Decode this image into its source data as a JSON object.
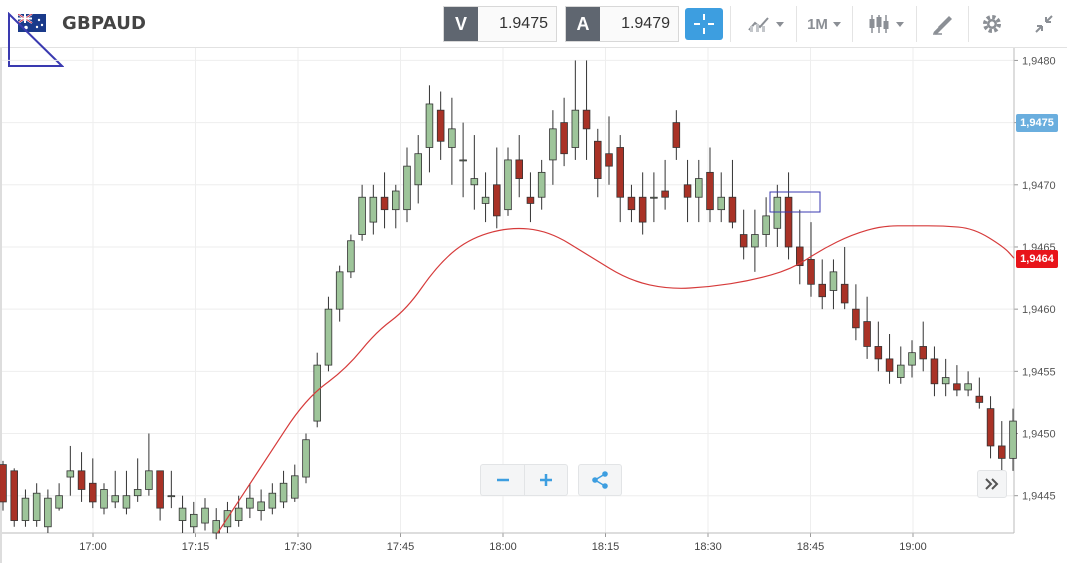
{
  "header": {
    "symbol": "GBPAUD",
    "bid_tag": "V",
    "bid_price": "1.9475",
    "ask_tag": "A",
    "ask_price": "1.9479",
    "timeframe": "1M"
  },
  "colors": {
    "bull": "#9ec59a",
    "bear": "#a93226",
    "ma": "#d63b3b",
    "accent": "#3d9ee0",
    "current_ask_bg": "#6aaede",
    "current_ma_bg": "#e8141a"
  },
  "markers": {
    "ask_label": "1,9475",
    "ma_label": "1,9464"
  },
  "chart_data": {
    "type": "candlestick",
    "title": "",
    "xlabel": "",
    "ylabel": "",
    "ylim": [
      1.9442,
      1.9481
    ],
    "y_ticks": [
      "1,9480",
      "1,9475",
      "1,9470",
      "1,9465",
      "1,9460",
      "1,9455",
      "1,9450",
      "1,9445"
    ],
    "x_ticks": [
      "17:00",
      "17:15",
      "17:30",
      "17:45",
      "18:00",
      "18:15",
      "18:30",
      "18:45",
      "19:00"
    ],
    "grid": true,
    "legend": "none",
    "series": [
      {
        "kind": "ohlc",
        "candles": [
          [
            1.94475,
            1.94478,
            1.94438,
            1.94445
          ],
          [
            1.9447,
            1.94472,
            1.94425,
            1.9443
          ],
          [
            1.9443,
            1.94455,
            1.94425,
            1.94448
          ],
          [
            1.9443,
            1.9446,
            1.94425,
            1.94452
          ],
          [
            1.94425,
            1.94455,
            1.9442,
            1.94448
          ],
          [
            1.9444,
            1.9446,
            1.94438,
            1.9445
          ],
          [
            1.94465,
            1.9449,
            1.9445,
            1.9447
          ],
          [
            1.9447,
            1.94485,
            1.94445,
            1.94455
          ],
          [
            1.9446,
            1.9448,
            1.9444,
            1.94445
          ],
          [
            1.9444,
            1.9446,
            1.94435,
            1.94455
          ],
          [
            1.94445,
            1.9447,
            1.9444,
            1.9445
          ],
          [
            1.9444,
            1.9447,
            1.94435,
            1.9445
          ],
          [
            1.9445,
            1.9448,
            1.94445,
            1.94455
          ],
          [
            1.94455,
            1.945,
            1.9445,
            1.9447
          ],
          [
            1.9447,
            1.9447,
            1.9443,
            1.9444
          ],
          [
            1.9445,
            1.9447,
            1.9444,
            1.9445
          ],
          [
            1.9443,
            1.9445,
            1.9442,
            1.9444
          ],
          [
            1.94425,
            1.94445,
            1.9442,
            1.94435
          ],
          [
            1.94428,
            1.94448,
            1.94422,
            1.9444
          ],
          [
            1.9442,
            1.9444,
            1.94415,
            1.9443
          ],
          [
            1.94425,
            1.94445,
            1.9442,
            1.94438
          ],
          [
            1.9443,
            1.9445,
            1.94425,
            1.9444
          ],
          [
            1.9444,
            1.9446,
            1.94432,
            1.94448
          ],
          [
            1.94438,
            1.94455,
            1.9443,
            1.94445
          ],
          [
            1.9444,
            1.9446,
            1.94435,
            1.94452
          ],
          [
            1.94445,
            1.9447,
            1.9444,
            1.9446
          ],
          [
            1.94448,
            1.94475,
            1.94445,
            1.94466
          ],
          [
            1.94465,
            1.945,
            1.9446,
            1.94495
          ],
          [
            1.9451,
            1.94565,
            1.94505,
            1.94555
          ],
          [
            1.94555,
            1.9461,
            1.9455,
            1.946
          ],
          [
            1.946,
            1.94635,
            1.9459,
            1.9463
          ],
          [
            1.9463,
            1.9466,
            1.94625,
            1.94655
          ],
          [
            1.9466,
            1.947,
            1.94655,
            1.9469
          ],
          [
            1.9467,
            1.947,
            1.9466,
            1.9469
          ],
          [
            1.9469,
            1.9471,
            1.94665,
            1.9468
          ],
          [
            1.9468,
            1.947,
            1.94665,
            1.94695
          ],
          [
            1.9468,
            1.9473,
            1.9467,
            1.94715
          ],
          [
            1.947,
            1.9474,
            1.94685,
            1.94725
          ],
          [
            1.9473,
            1.9478,
            1.9471,
            1.94765
          ],
          [
            1.9476,
            1.94775,
            1.9472,
            1.94735
          ],
          [
            1.9473,
            1.9477,
            1.947,
            1.94745
          ],
          [
            1.9472,
            1.9475,
            1.9469,
            1.9472
          ],
          [
            1.947,
            1.9474,
            1.9468,
            1.94705
          ],
          [
            1.94685,
            1.9471,
            1.9467,
            1.9469
          ],
          [
            1.947,
            1.9473,
            1.94665,
            1.94675
          ],
          [
            1.9468,
            1.9473,
            1.94675,
            1.9472
          ],
          [
            1.9472,
            1.9474,
            1.9469,
            1.94705
          ],
          [
            1.9469,
            1.9471,
            1.9467,
            1.94685
          ],
          [
            1.9469,
            1.9472,
            1.9468,
            1.9471
          ],
          [
            1.9472,
            1.9476,
            1.947,
            1.94745
          ],
          [
            1.9475,
            1.9477,
            1.94715,
            1.94725
          ],
          [
            1.9473,
            1.948,
            1.9472,
            1.9476
          ],
          [
            1.9476,
            1.948,
            1.9472,
            1.94745
          ],
          [
            1.94735,
            1.94745,
            1.9469,
            1.94705
          ],
          [
            1.94725,
            1.94755,
            1.947,
            1.94715
          ],
          [
            1.9473,
            1.9474,
            1.9467,
            1.9469
          ],
          [
            1.9469,
            1.947,
            1.9467,
            1.9468
          ],
          [
            1.9469,
            1.9471,
            1.9466,
            1.9467
          ],
          [
            1.9469,
            1.9471,
            1.9467,
            1.9469
          ],
          [
            1.94695,
            1.9472,
            1.9468,
            1.9469
          ],
          [
            1.9475,
            1.9476,
            1.9472,
            1.9473
          ],
          [
            1.947,
            1.9472,
            1.9467,
            1.9469
          ],
          [
            1.9469,
            1.9472,
            1.9467,
            1.94705
          ],
          [
            1.9471,
            1.9473,
            1.9467,
            1.9468
          ],
          [
            1.9468,
            1.9471,
            1.9467,
            1.9469
          ],
          [
            1.9469,
            1.9472,
            1.94665,
            1.9467
          ],
          [
            1.9466,
            1.9468,
            1.9464,
            1.9465
          ],
          [
            1.9465,
            1.9468,
            1.9463,
            1.9466
          ],
          [
            1.9466,
            1.9469,
            1.9465,
            1.94675
          ],
          [
            1.94665,
            1.947,
            1.9465,
            1.9469
          ],
          [
            1.9469,
            1.9471,
            1.9464,
            1.9465
          ],
          [
            1.9465,
            1.9468,
            1.9462,
            1.94635
          ],
          [
            1.9464,
            1.9467,
            1.9461,
            1.9462
          ],
          [
            1.9462,
            1.9464,
            1.946,
            1.9461
          ],
          [
            1.94615,
            1.9464,
            1.946,
            1.9463
          ],
          [
            1.9462,
            1.9465,
            1.946,
            1.94605
          ],
          [
            1.946,
            1.9462,
            1.94575,
            1.94585
          ],
          [
            1.9459,
            1.9461,
            1.9456,
            1.9457
          ],
          [
            1.9457,
            1.9459,
            1.9455,
            1.9456
          ],
          [
            1.9456,
            1.9458,
            1.9454,
            1.9455
          ],
          [
            1.94545,
            1.9457,
            1.9454,
            1.94555
          ],
          [
            1.94555,
            1.94575,
            1.94545,
            1.94565
          ],
          [
            1.9457,
            1.9459,
            1.9455,
            1.9456
          ],
          [
            1.9456,
            1.9457,
            1.9453,
            1.9454
          ],
          [
            1.9454,
            1.9456,
            1.9453,
            1.94545
          ],
          [
            1.9454,
            1.94555,
            1.9453,
            1.94535
          ],
          [
            1.94535,
            1.9455,
            1.9453,
            1.9454
          ],
          [
            1.9453,
            1.94545,
            1.9452,
            1.94525
          ],
          [
            1.9452,
            1.9453,
            1.9448,
            1.9449
          ],
          [
            1.9449,
            1.9451,
            1.9447,
            1.9448
          ],
          [
            1.9448,
            1.9452,
            1.9447,
            1.9451
          ]
        ]
      },
      {
        "kind": "line",
        "points": [
          [
            0.213,
            1.9442
          ],
          [
            0.26,
            1.94478
          ],
          [
            0.3,
            1.94528
          ],
          [
            0.34,
            1.94552
          ],
          [
            0.37,
            1.94582
          ],
          [
            0.4,
            1.946
          ],
          [
            0.43,
            1.94635
          ],
          [
            0.46,
            1.94656
          ],
          [
            0.5,
            1.94666
          ],
          [
            0.54,
            1.94663
          ],
          [
            0.58,
            1.94643
          ],
          [
            0.62,
            1.94623
          ],
          [
            0.66,
            1.94616
          ],
          [
            0.7,
            1.94618
          ],
          [
            0.74,
            1.94623
          ],
          [
            0.78,
            1.94632
          ],
          [
            0.81,
            1.94648
          ],
          [
            0.84,
            1.9466
          ],
          [
            0.87,
            1.94667
          ],
          [
            0.9,
            1.94667
          ],
          [
            0.93,
            1.94667
          ],
          [
            0.96,
            1.94665
          ],
          [
            0.99,
            1.9465
          ],
          [
            1.0,
            1.94641
          ]
        ]
      }
    ]
  }
}
